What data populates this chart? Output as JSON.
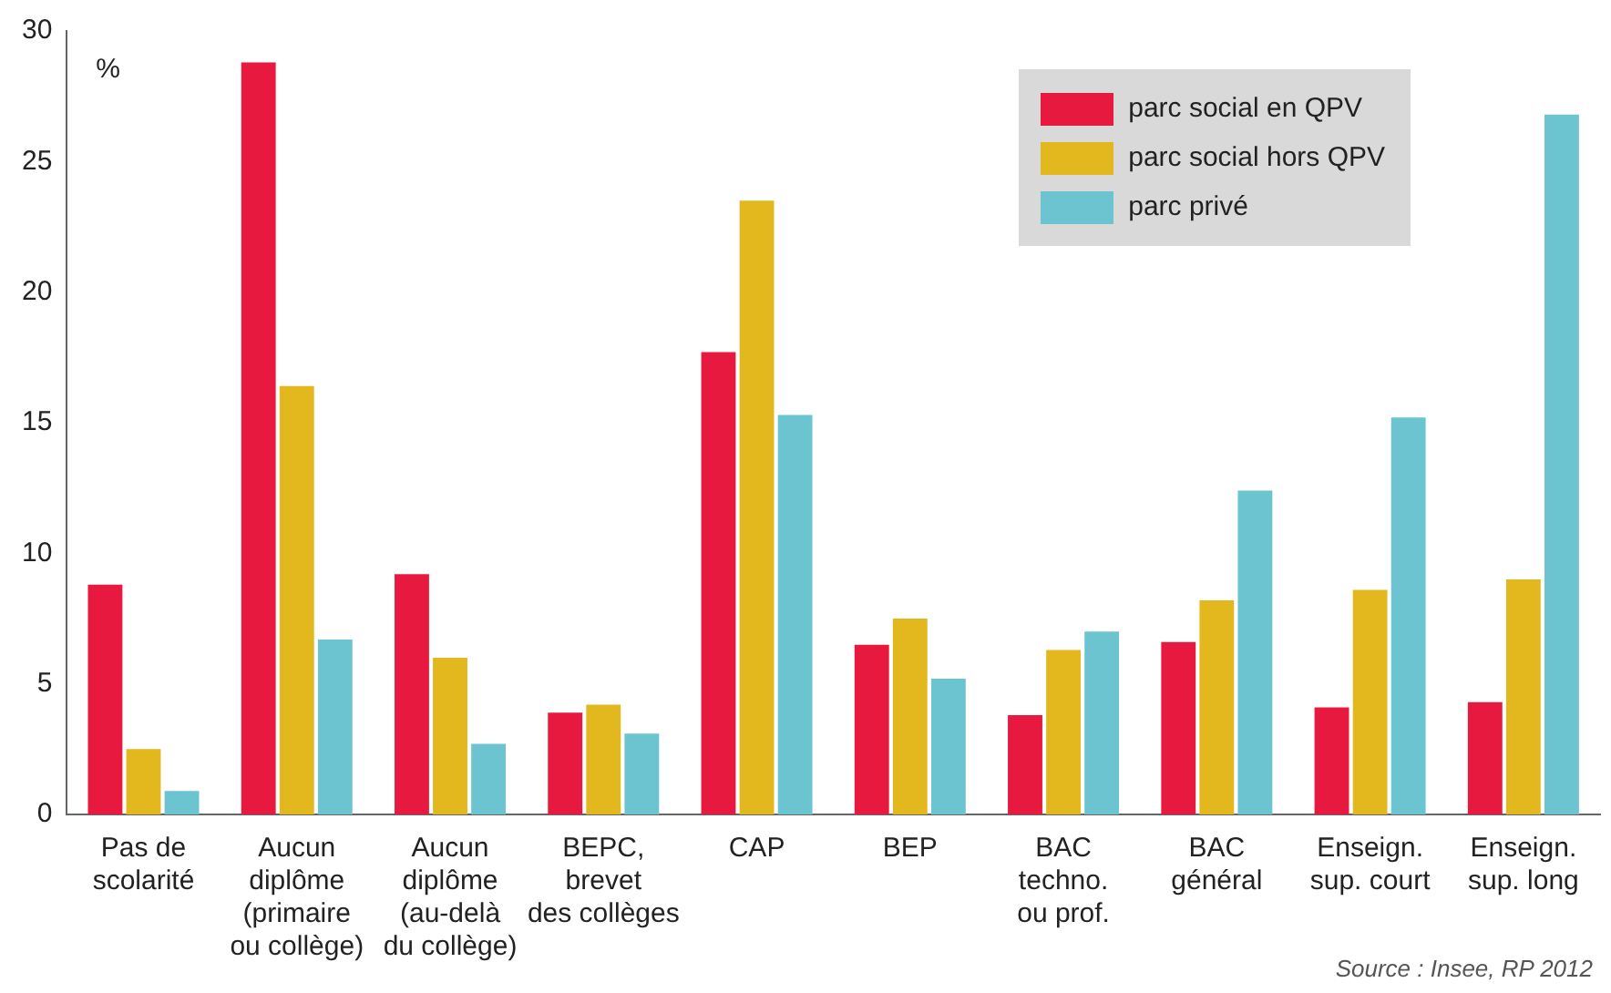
{
  "chart_data": {
    "type": "bar",
    "ylabel": "%",
    "categories": [
      "Pas de\nscolarité",
      "Aucun\ndiplôme\n(primaire\nou collège)",
      "Aucun\ndiplôme\n(au-delà\ndu collège)",
      "BEPC,\nbrevet\ndes collèges",
      "CAP",
      "BEP",
      "BAC\ntechno.\nou prof.",
      "BAC\ngénéral",
      "Enseign.\nsup. court",
      "Enseign.\nsup. long"
    ],
    "series": [
      {
        "name": "parc social en QPV",
        "color": "#e8193f",
        "values": [
          8.8,
          28.8,
          9.2,
          3.9,
          17.7,
          6.5,
          3.8,
          6.6,
          4.1,
          4.3
        ]
      },
      {
        "name": "parc social hors QPV",
        "color": "#e3b81f",
        "values": [
          2.5,
          16.4,
          6.0,
          4.2,
          23.5,
          7.5,
          6.3,
          8.2,
          8.6,
          9.0
        ]
      },
      {
        "name": "parc privé",
        "color": "#6cc4d0",
        "values": [
          0.9,
          6.7,
          2.7,
          3.1,
          15.3,
          5.2,
          7.0,
          12.4,
          15.2,
          26.8
        ]
      }
    ],
    "ylim": [
      0,
      30
    ],
    "yticks": [
      0,
      5,
      10,
      15,
      20,
      25,
      30
    ],
    "grid": false,
    "legend": "top right",
    "annotations": [
      "Source : Insee, RP 2012"
    ]
  }
}
